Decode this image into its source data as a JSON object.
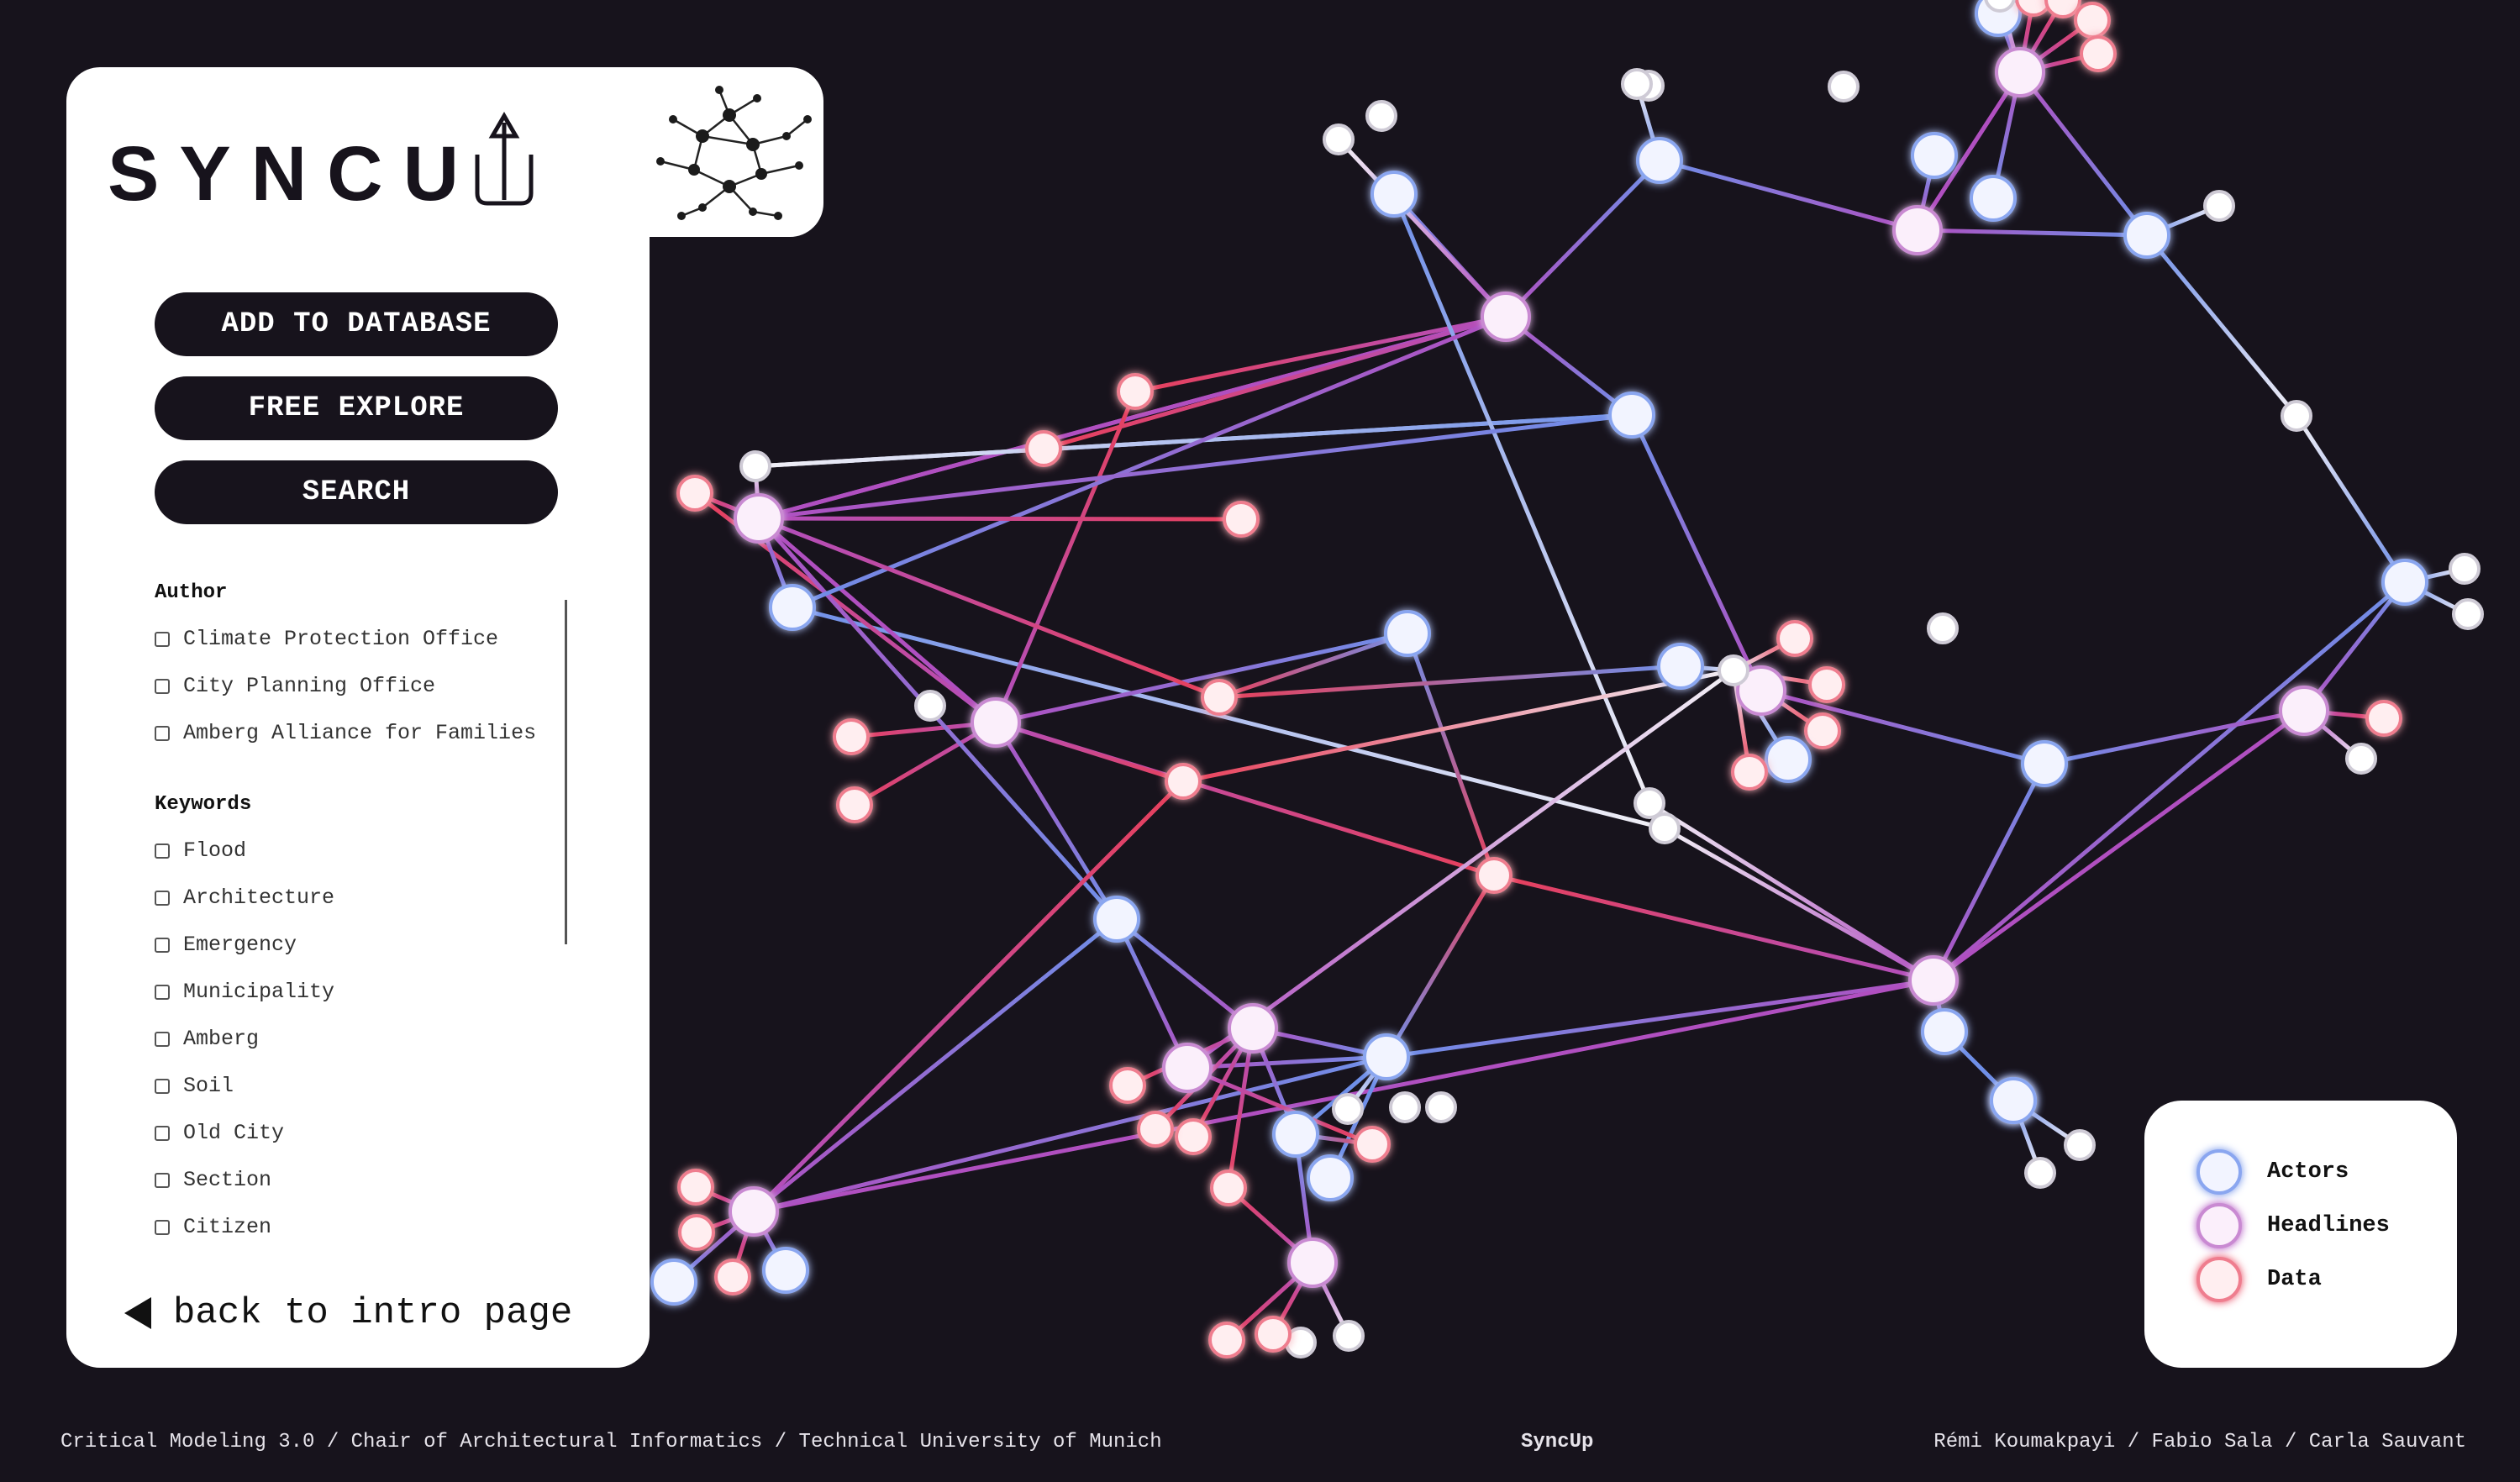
{
  "app": {
    "title": "SYNCUP"
  },
  "sidebar": {
    "buttons": {
      "add": "ADD TO DATABASE",
      "explore": "FREE EXPLORE",
      "search": "SEARCH"
    },
    "author": {
      "title": "Author",
      "items": [
        "Climate Protection Office",
        "City Planning Office",
        "Amberg Alliance for Families"
      ]
    },
    "keywords": {
      "title": "Keywords",
      "items": [
        "Flood",
        "Architecture",
        "Emergency",
        "Municipality",
        "Amberg",
        "Soil",
        "Old City",
        "Section",
        "Citizen"
      ]
    },
    "back": "back to intro page"
  },
  "legend": {
    "actors": "Actors",
    "headlines": "Headlines",
    "data": "Data"
  },
  "colors": {
    "background": "#17131c",
    "actor": "#6f8fe8",
    "headline": "#b04fc0",
    "data": "#e8405a",
    "plain": "#ffffff"
  },
  "footer": {
    "left": "Critical Modeling 3.0 / Chair of Architectural Informatics / Technical University of Munich",
    "center": "SyncUp",
    "right": "Rémi Koumakpayi / Fabio Sala / Carla Sauvant"
  }
}
